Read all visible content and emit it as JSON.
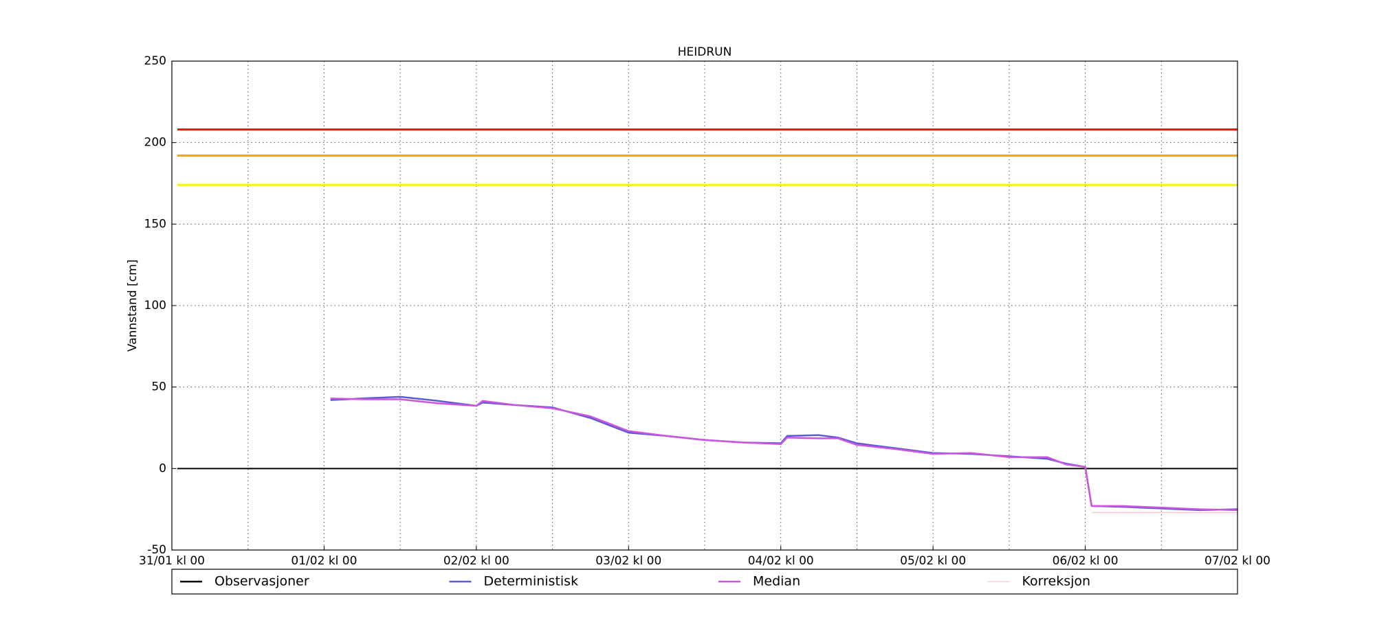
{
  "chart_data": {
    "type": "line",
    "title": "HEIDRUN",
    "y_label": "Vannstand [cm]",
    "xlim": [
      "31/01 kl 00",
      "07/02 kl 00"
    ],
    "xticks": [
      "31/01 kl 00",
      "01/02 kl 00",
      "02/02 kl 00",
      "03/02 kl 00",
      "04/02 kl 00",
      "05/02 kl 00",
      "06/02 kl 00",
      "07/02 kl 00"
    ],
    "ylim": [
      -50,
      250
    ],
    "yticks": [
      -50,
      0,
      50,
      100,
      150,
      200,
      250
    ],
    "grid": true,
    "hlines": [
      {
        "value": 208,
        "color": "#ee1111"
      },
      {
        "value": 192,
        "color": "#f0a020"
      },
      {
        "value": 174,
        "color": "#f5f020"
      },
      {
        "value": 0,
        "color": "#000000"
      }
    ],
    "series": [
      {
        "name": "Observasjoner",
        "color": "#000000",
        "x": [],
        "values": []
      },
      {
        "name": "Deterministisk",
        "color": "#5a5ad8",
        "x": [
          "01/02 kl 01",
          "01/02 kl 06",
          "01/02 kl 12",
          "01/02 kl 18",
          "02/02 kl 00",
          "02/02 kl 01",
          "02/02 kl 06",
          "02/02 kl 12",
          "02/02 kl 18",
          "03/02 kl 00",
          "03/02 kl 06",
          "03/02 kl 12",
          "03/02 kl 18",
          "04/02 kl 00",
          "04/02 kl 01",
          "04/02 kl 06",
          "04/02 kl 09",
          "04/02 kl 12",
          "04/02 kl 18",
          "05/02 kl 00",
          "05/02 kl 06",
          "05/02 kl 12",
          "05/02 kl 18",
          "05/02 kl 21",
          "06/02 kl 00",
          "06/02 kl 01",
          "06/02 kl 06",
          "06/02 kl 12",
          "06/02 kl 18",
          "07/02 kl 00"
        ],
        "values": [
          42,
          43,
          44,
          41.5,
          38.5,
          40.5,
          39,
          37.5,
          31,
          22,
          20,
          17.5,
          16,
          15.5,
          20,
          20.5,
          19,
          15.5,
          12.5,
          9.5,
          9,
          7.5,
          6,
          3,
          1,
          -23,
          -23.5,
          -24.5,
          -25.5,
          -25
        ]
      },
      {
        "name": "Median",
        "color": "#cc55dd",
        "x": [
          "01/02 kl 01",
          "01/02 kl 06",
          "01/02 kl 12",
          "01/02 kl 18",
          "02/02 kl 00",
          "02/02 kl 01",
          "02/02 kl 06",
          "02/02 kl 12",
          "02/02 kl 18",
          "03/02 kl 00",
          "03/02 kl 06",
          "03/02 kl 12",
          "03/02 kl 18",
          "04/02 kl 00",
          "04/02 kl 01",
          "04/02 kl 06",
          "04/02 kl 09",
          "04/02 kl 12",
          "04/02 kl 18",
          "05/02 kl 00",
          "05/02 kl 06",
          "05/02 kl 12",
          "05/02 kl 18",
          "05/02 kl 21",
          "06/02 kl 00",
          "06/02 kl 01",
          "06/02 kl 06",
          "06/02 kl 12",
          "06/02 kl 18",
          "07/02 kl 00"
        ],
        "values": [
          43,
          42.5,
          42.5,
          40,
          38.5,
          41.5,
          39,
          37,
          32,
          23,
          20,
          17.5,
          16,
          15,
          19,
          18.5,
          18.5,
          14.5,
          12,
          9,
          9.5,
          7,
          7,
          2.5,
          1,
          -23,
          -23,
          -24,
          -25,
          -25.5
        ]
      },
      {
        "name": "Korreksjon",
        "color": "#f5c8d8",
        "x": [
          "06/02 kl 01",
          "07/02 kl 00"
        ],
        "values": [
          -27,
          -27
        ]
      }
    ]
  }
}
